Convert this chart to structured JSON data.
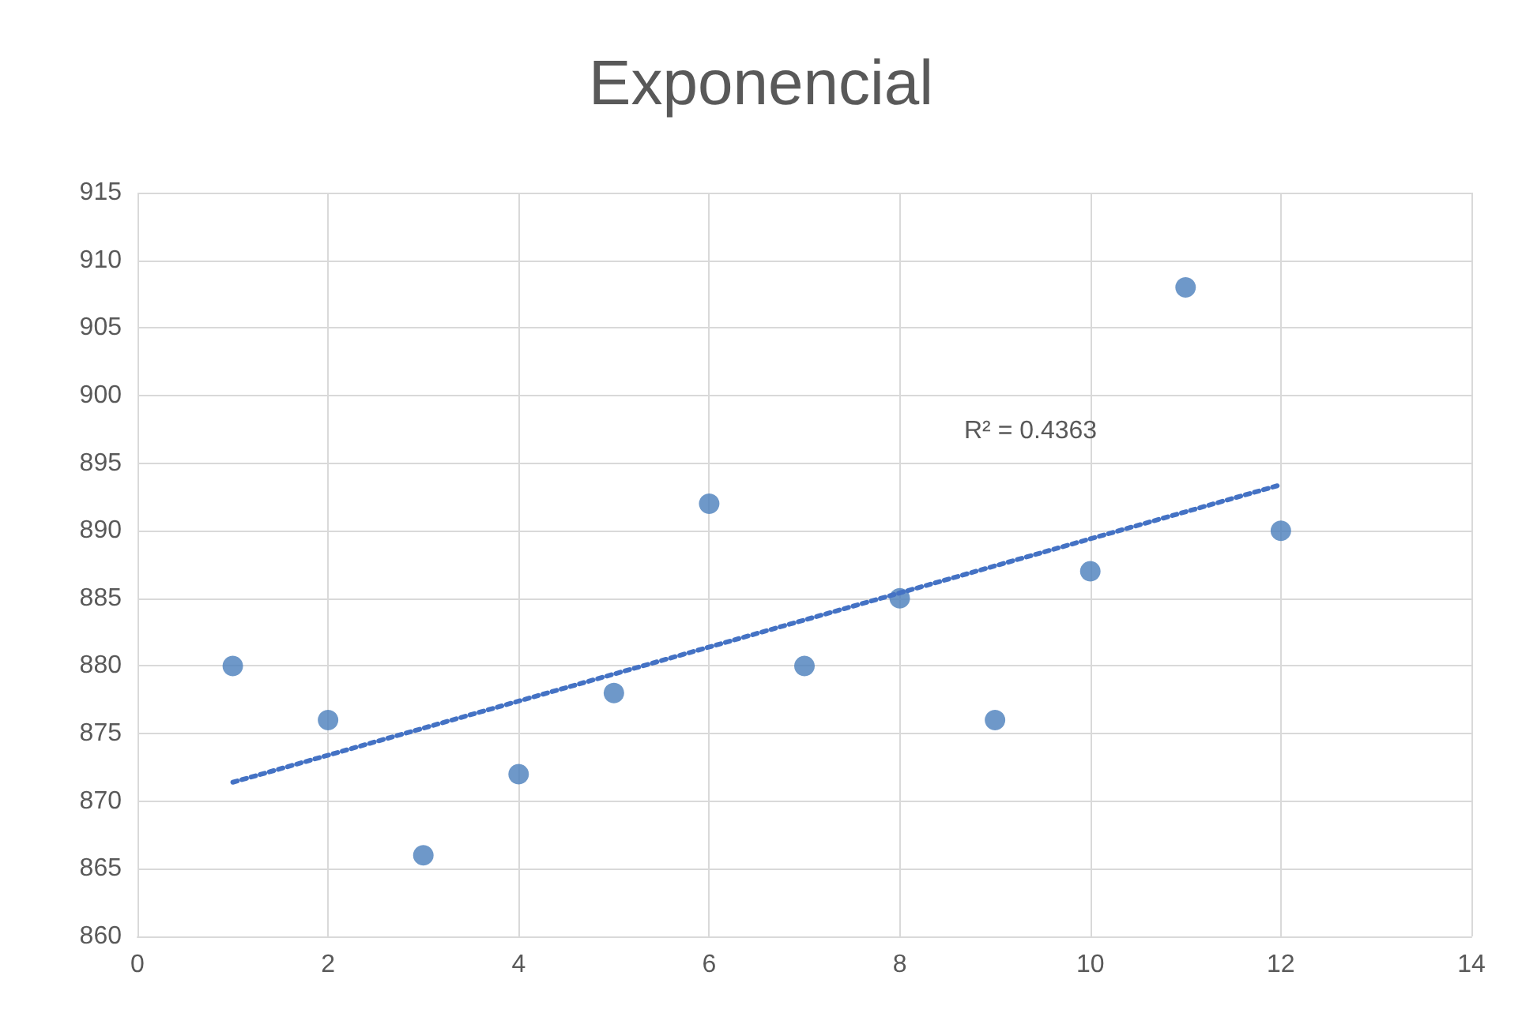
{
  "chart_data": {
    "type": "scatter",
    "title": "Exponencial",
    "x": [
      1,
      2,
      3,
      4,
      5,
      6,
      7,
      8,
      9,
      10,
      11,
      12
    ],
    "series": [
      {
        "color": "#4a7ebb",
        "marker": "circle",
        "values": [
          880,
          876,
          866,
          872,
          878,
          892,
          880,
          885,
          876,
          887,
          908,
          890
        ]
      },
      {
        "type": "line",
        "color": "#4472c4",
        "marker": "none",
        "line_style": "dotted",
        "x": [
          1,
          12
        ],
        "values": [
          871.4,
          893.4
        ]
      }
    ],
    "annotations": [
      "R² = 0.4363"
    ],
    "xlim": [
      0,
      14
    ],
    "xticks": [
      0,
      2,
      4,
      6,
      8,
      10,
      12,
      14
    ],
    "ylim": [
      860,
      915
    ],
    "yticks": [
      860,
      865,
      870,
      875,
      880,
      885,
      890,
      895,
      900,
      905,
      910,
      915
    ],
    "grid": true
  }
}
